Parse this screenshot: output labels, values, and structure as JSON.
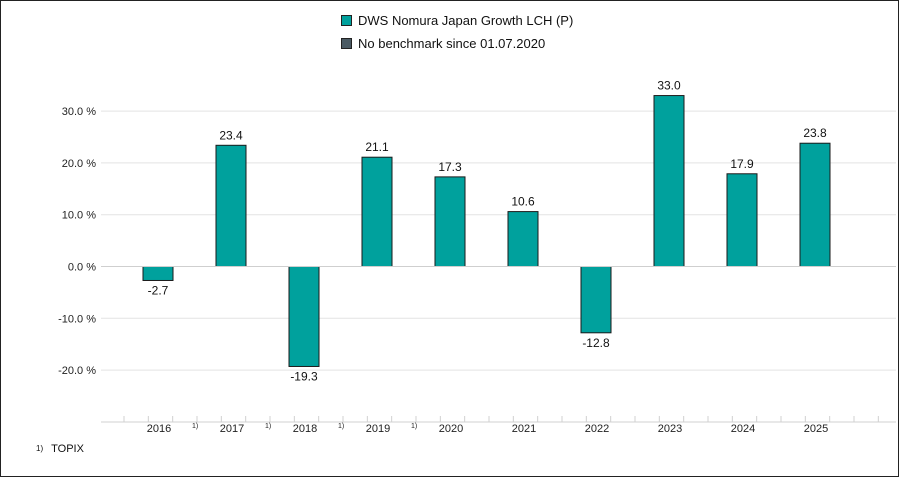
{
  "legend": {
    "items": [
      {
        "label": "DWS Nomura Japan Growth LCH (P)",
        "color": "#00A19D"
      },
      {
        "label": "No benchmark since 01.07.2020",
        "color": "#4A5A63"
      }
    ]
  },
  "footnote": {
    "marker": "1)",
    "text": "TOPIX"
  },
  "chart_data": {
    "type": "bar",
    "categories": [
      "2016",
      "2017",
      "2018",
      "2019",
      "2020",
      "2021",
      "2022",
      "2023",
      "2024",
      "2025"
    ],
    "category_markers": [
      "1)",
      "1)",
      "1)",
      "1)",
      "",
      "",
      "",
      "",
      "",
      ""
    ],
    "series": [
      {
        "name": "DWS Nomura Japan Growth LCH (P)",
        "color": "#00A19D",
        "values": [
          -2.7,
          23.4,
          -19.3,
          21.1,
          17.3,
          10.6,
          -12.8,
          33.0,
          17.9,
          23.8
        ],
        "labels": [
          "-2.7",
          "23.4",
          "-19.3",
          "21.1",
          "17.3",
          "10.6",
          "-12.8",
          "33.0",
          "17.9",
          "23.8"
        ]
      }
    ],
    "yticks": [
      30,
      20,
      10,
      0,
      -10,
      -20
    ],
    "ytick_labels": [
      "30.0 %",
      "20.0 %",
      "10.0 %",
      "0.0 %",
      "-10.0 %",
      "-20.0 %"
    ],
    "ylim": [
      -30,
      40
    ],
    "grid": true,
    "legend_position": "top-center"
  }
}
